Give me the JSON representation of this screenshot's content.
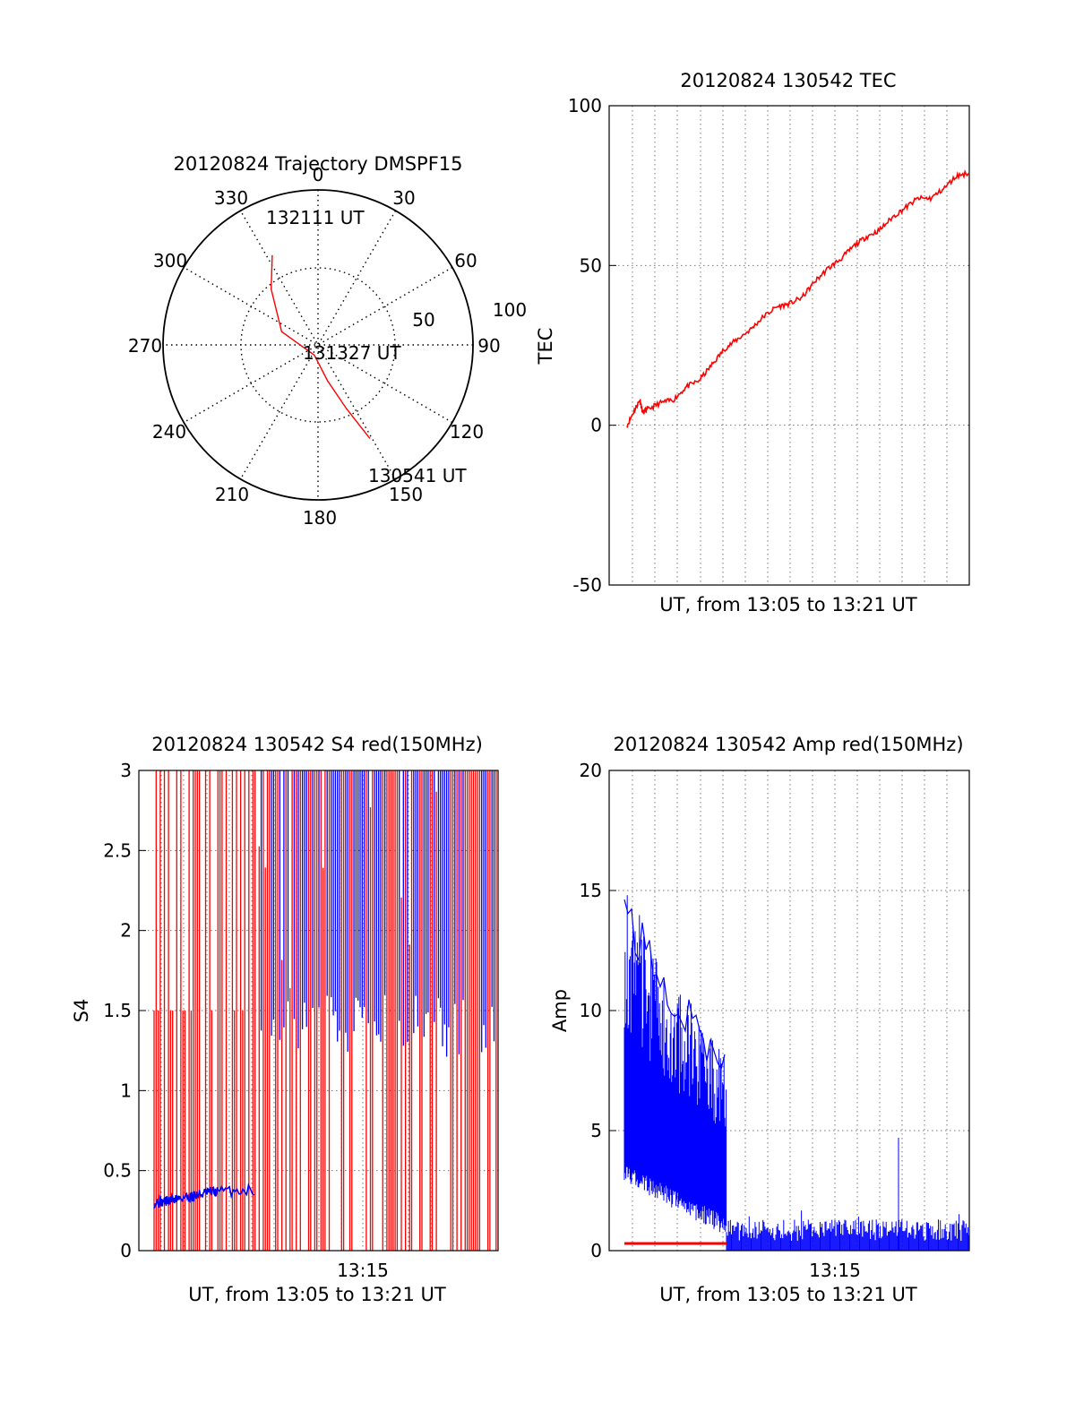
{
  "chart_data": [
    {
      "type": "polar",
      "title": "20120824 Trajectory DMSPF15",
      "angle_labels": [
        "0",
        "30",
        "60",
        "90",
        "120",
        "150",
        "180",
        "210",
        "240",
        "270",
        "300",
        "330"
      ],
      "radius_labels": [
        "50",
        "100"
      ],
      "track": {
        "color": "#ff0000",
        "points": [
          {
            "az": 333,
            "r": 65
          },
          {
            "az": 320,
            "r": 47
          },
          {
            "az": 290,
            "r": 25
          },
          {
            "az": 200,
            "r": 7
          },
          {
            "az": 165,
            "r": 24
          },
          {
            "az": 156,
            "r": 45
          },
          {
            "az": 151,
            "r": 69
          }
        ]
      },
      "annotations": [
        {
          "text": "132111 UT",
          "az": 336,
          "r": 65
        },
        {
          "text": "131327 UT",
          "az": 100,
          "r": 0
        },
        {
          "text": "130541 UT",
          "az": 151,
          "r": 69
        }
      ]
    },
    {
      "type": "line",
      "title": "20120824 130542 TEC",
      "xlabel": "UT, from 13:05 to 13:21 UT",
      "ylabel": "TEC",
      "xlim": [
        13.08,
        13.36
      ],
      "ylim": [
        -50,
        100
      ],
      "yticks": [
        "-50",
        "0",
        "50",
        "100"
      ],
      "series": [
        {
          "color": "#ff0000",
          "x": [
            13.094,
            13.1,
            13.104,
            13.106,
            13.11,
            13.12,
            13.13,
            13.14,
            13.15,
            13.16,
            13.17,
            13.18,
            13.19,
            13.2,
            13.21,
            13.22,
            13.23,
            13.24,
            13.25,
            13.26,
            13.27,
            13.28,
            13.29,
            13.3,
            13.31,
            13.32,
            13.33,
            13.34,
            13.35,
            13.36
          ],
          "y": [
            0,
            5,
            8,
            4,
            5,
            7,
            8,
            12,
            14,
            19,
            24,
            27,
            30,
            34,
            37,
            38,
            40,
            45,
            49,
            52,
            56,
            59,
            61,
            65,
            68,
            71,
            71,
            74,
            78,
            79
          ]
        }
      ]
    },
    {
      "type": "line",
      "title": "20120824 130542 S4 red(150MHz)",
      "xlabel": "UT, from 13:05 to 13:21 UT",
      "ylabel": "S4",
      "xlim": [
        13.08,
        13.36
      ],
      "ylim": [
        0,
        3
      ],
      "yticks": [
        "0",
        "0.5",
        "1",
        "1.5",
        "2",
        "2.5",
        "3"
      ],
      "xticks": [
        "13:15"
      ],
      "series": [
        {
          "color": "#0000ff",
          "x": [
            13.08,
            13.09,
            13.1,
            13.11,
            13.12,
            13.13,
            13.16
          ],
          "y": [
            0.3,
            0.31,
            0.33,
            0.34,
            0.36,
            0.37,
            0.38
          ]
        }
      ]
    },
    {
      "type": "line",
      "title": "20120824 130542 Amp red(150MHz)",
      "xlabel": "UT, from 13:05 to 13:21 UT",
      "ylabel": "Amp",
      "xlim": [
        13.08,
        13.36
      ],
      "ylim": [
        0,
        20
      ],
      "yticks": [
        "0",
        "5",
        "10",
        "15",
        "20"
      ],
      "xticks": [
        "13:15"
      ],
      "series": [
        {
          "color": "#0000ff",
          "x": [
            13.094,
            13.1,
            13.12,
            13.14,
            13.16,
            13.18,
            13.186
          ],
          "y": [
            15.5,
            14,
            12,
            11,
            10.5,
            9,
            8.5
          ]
        },
        {
          "color": "#ff0000",
          "x": [
            13.094,
            13.186
          ],
          "y": [
            0.3,
            0.3
          ]
        }
      ]
    }
  ]
}
